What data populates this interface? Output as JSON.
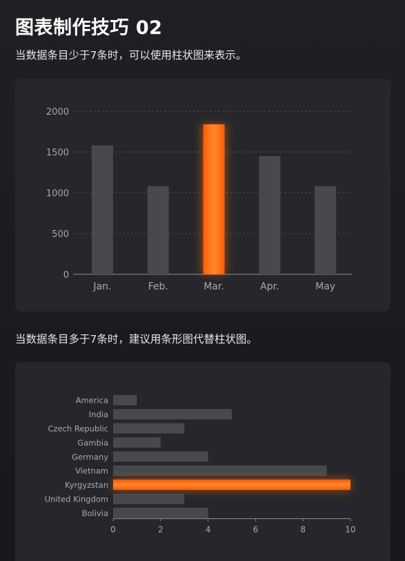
{
  "header": {
    "title": "图表制作技巧 02",
    "subtitle1": "当数据条目少于7条时，可以使用柱状图来表示。",
    "subtitle2": "当数据条目多于7条时，建议用条形图代替柱状图。"
  },
  "colors": {
    "bar": "#48494d",
    "highlight": "#ff6a10",
    "grid": "#4a4b50",
    "tick": "#a7a9ad"
  },
  "chart_data": [
    {
      "type": "bar",
      "categories": [
        "Jan.",
        "Feb.",
        "Mar.",
        "Apr.",
        "May"
      ],
      "values": [
        1580,
        1080,
        1840,
        1450,
        1080
      ],
      "highlight": "Mar.",
      "ylim": [
        0,
        2000
      ],
      "yticks": [
        0,
        500,
        1000,
        1500,
        2000
      ],
      "grid": true
    },
    {
      "type": "bar",
      "orientation": "horizontal",
      "categories": [
        "America",
        "India",
        "Czech Republic",
        "Gambia",
        "Germany",
        "Vietnam",
        "Kyrgyzstan",
        "United Kingdom",
        "Bolivia"
      ],
      "values": [
        1,
        5,
        3,
        2,
        4,
        9,
        10,
        3,
        4
      ],
      "highlight": "Kyrgyzstan",
      "xlim": [
        0,
        10
      ],
      "xticks": [
        0,
        2,
        4,
        6,
        8,
        10
      ],
      "grid": false
    }
  ]
}
